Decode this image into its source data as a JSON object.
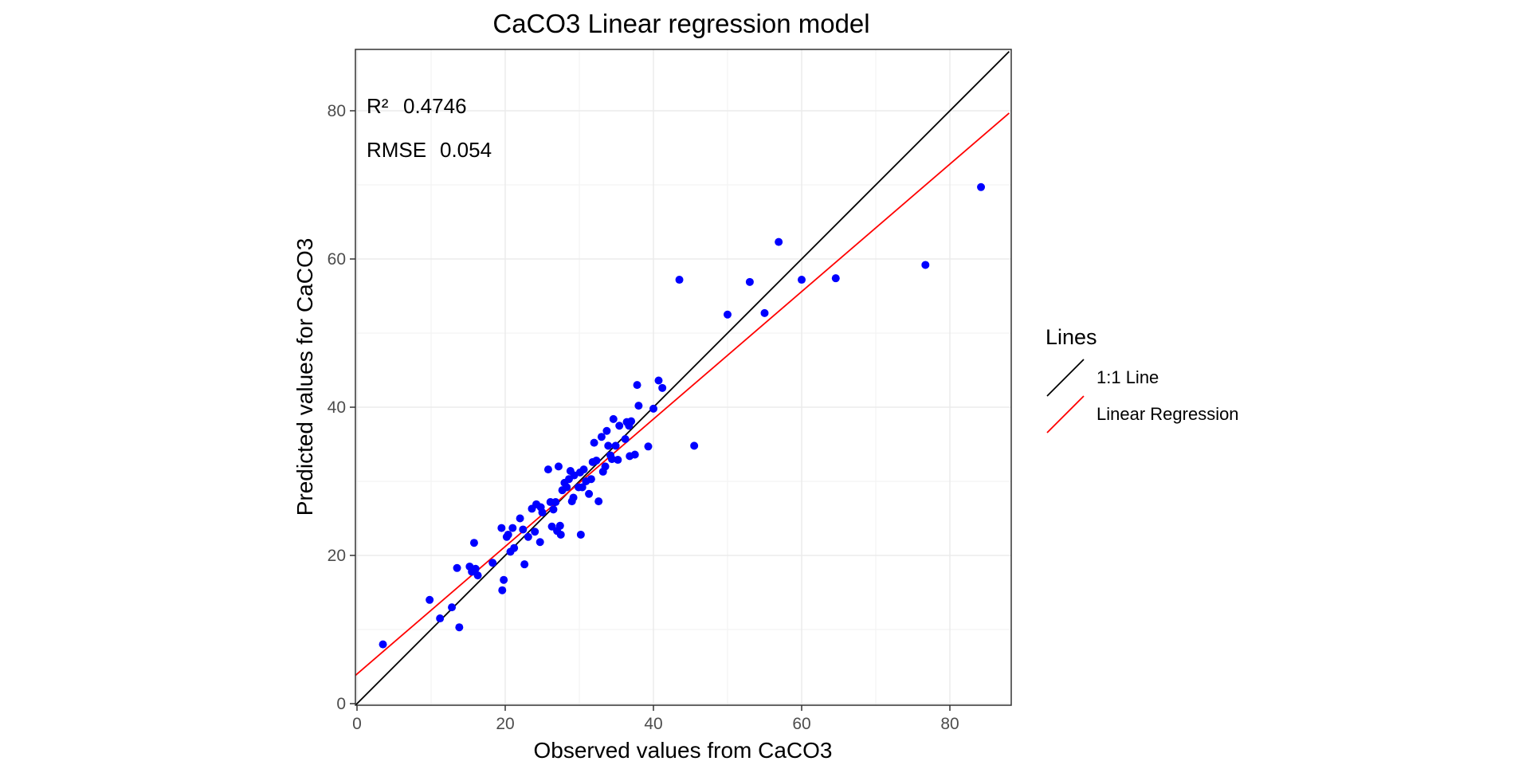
{
  "chart_data": {
    "type": "scatter",
    "title": "CaCO3  Linear regression model",
    "xlabel": "Observed values from CaCO3",
    "ylabel": "Predicted values for CaCO3",
    "xlim": [
      0,
      88
    ],
    "ylim": [
      0,
      88
    ],
    "x_ticks": [
      0,
      20,
      40,
      60,
      80
    ],
    "y_ticks": [
      0,
      20,
      40,
      60,
      80
    ],
    "grid": true,
    "point_color": "#0000ff",
    "annotations": [
      {
        "label": "R²",
        "value": "0.4746"
      },
      {
        "label": "RMSE",
        "value": "0.054"
      }
    ],
    "lines": [
      {
        "name": "1:1 Line",
        "color": "#000000",
        "slope": 1,
        "intercept": 0
      },
      {
        "name": "Linear Regression",
        "color": "#ff0000",
        "slope": 0.86,
        "intercept": 4.0
      }
    ],
    "legend": {
      "title": "Lines",
      "position": "right"
    },
    "points": [
      [
        3.5,
        8
      ],
      [
        9.8,
        14
      ],
      [
        11.2,
        11.5
      ],
      [
        12.8,
        13
      ],
      [
        13.5,
        18.3
      ],
      [
        13.8,
        10.3
      ],
      [
        15.2,
        18.5
      ],
      [
        15.5,
        17.8
      ],
      [
        15.8,
        21.7
      ],
      [
        16,
        18.2
      ],
      [
        16.3,
        17.3
      ],
      [
        18.3,
        19
      ],
      [
        19.5,
        23.7
      ],
      [
        19.6,
        15.3
      ],
      [
        19.8,
        16.7
      ],
      [
        20.2,
        22.5
      ],
      [
        20.4,
        22.8
      ],
      [
        20.7,
        20.5
      ],
      [
        21,
        23.7
      ],
      [
        21.2,
        21
      ],
      [
        22,
        25
      ],
      [
        22.4,
        23.5
      ],
      [
        22.6,
        18.8
      ],
      [
        23.1,
        22.5
      ],
      [
        23.6,
        26.3
      ],
      [
        24,
        23.2
      ],
      [
        24.2,
        26.9
      ],
      [
        24.7,
        21.8
      ],
      [
        24.8,
        26.5
      ],
      [
        25,
        25.8
      ],
      [
        25.8,
        31.6
      ],
      [
        26.1,
        27.2
      ],
      [
        26.3,
        23.9
      ],
      [
        26.5,
        26.2
      ],
      [
        26.8,
        27.2
      ],
      [
        27,
        23.3
      ],
      [
        27.2,
        32
      ],
      [
        27.4,
        24
      ],
      [
        27.5,
        22.8
      ],
      [
        27.7,
        28.8
      ],
      [
        28,
        29.8
      ],
      [
        28.3,
        29.2
      ],
      [
        28.6,
        30.3
      ],
      [
        28.8,
        31.4
      ],
      [
        29,
        27.3
      ],
      [
        29.2,
        27.8
      ],
      [
        29.3,
        30.8
      ],
      [
        29.9,
        29.2
      ],
      [
        30.1,
        31.2
      ],
      [
        30.2,
        22.8
      ],
      [
        30.4,
        29.2
      ],
      [
        30.6,
        31.6
      ],
      [
        30.9,
        30
      ],
      [
        31.3,
        28.3
      ],
      [
        31.6,
        30.3
      ],
      [
        31.8,
        32.6
      ],
      [
        32,
        35.2
      ],
      [
        32.3,
        32.8
      ],
      [
        32.6,
        27.3
      ],
      [
        33,
        36
      ],
      [
        33.2,
        31.3
      ],
      [
        33.5,
        32
      ],
      [
        33.7,
        36.8
      ],
      [
        33.9,
        34.8
      ],
      [
        34.2,
        33.5
      ],
      [
        34.4,
        33
      ],
      [
        34.6,
        38.4
      ],
      [
        34.9,
        34.8
      ],
      [
        35.2,
        32.9
      ],
      [
        35.4,
        37.5
      ],
      [
        36.2,
        35.7
      ],
      [
        36.4,
        38
      ],
      [
        36.7,
        37.5
      ],
      [
        36.8,
        33.4
      ],
      [
        37,
        38.1
      ],
      [
        37.5,
        33.6
      ],
      [
        37.8,
        43
      ],
      [
        38,
        40.2
      ],
      [
        39.3,
        34.7
      ],
      [
        40,
        39.8
      ],
      [
        40.7,
        43.6
      ],
      [
        41.2,
        42.6
      ],
      [
        43.5,
        57.2
      ],
      [
        45.5,
        34.8
      ],
      [
        50,
        52.5
      ],
      [
        53,
        56.9
      ],
      [
        55,
        52.7
      ],
      [
        56.9,
        62.3
      ],
      [
        60,
        57.2
      ],
      [
        64.6,
        57.4
      ],
      [
        76.7,
        59.2
      ],
      [
        84.2,
        69.7
      ]
    ]
  }
}
